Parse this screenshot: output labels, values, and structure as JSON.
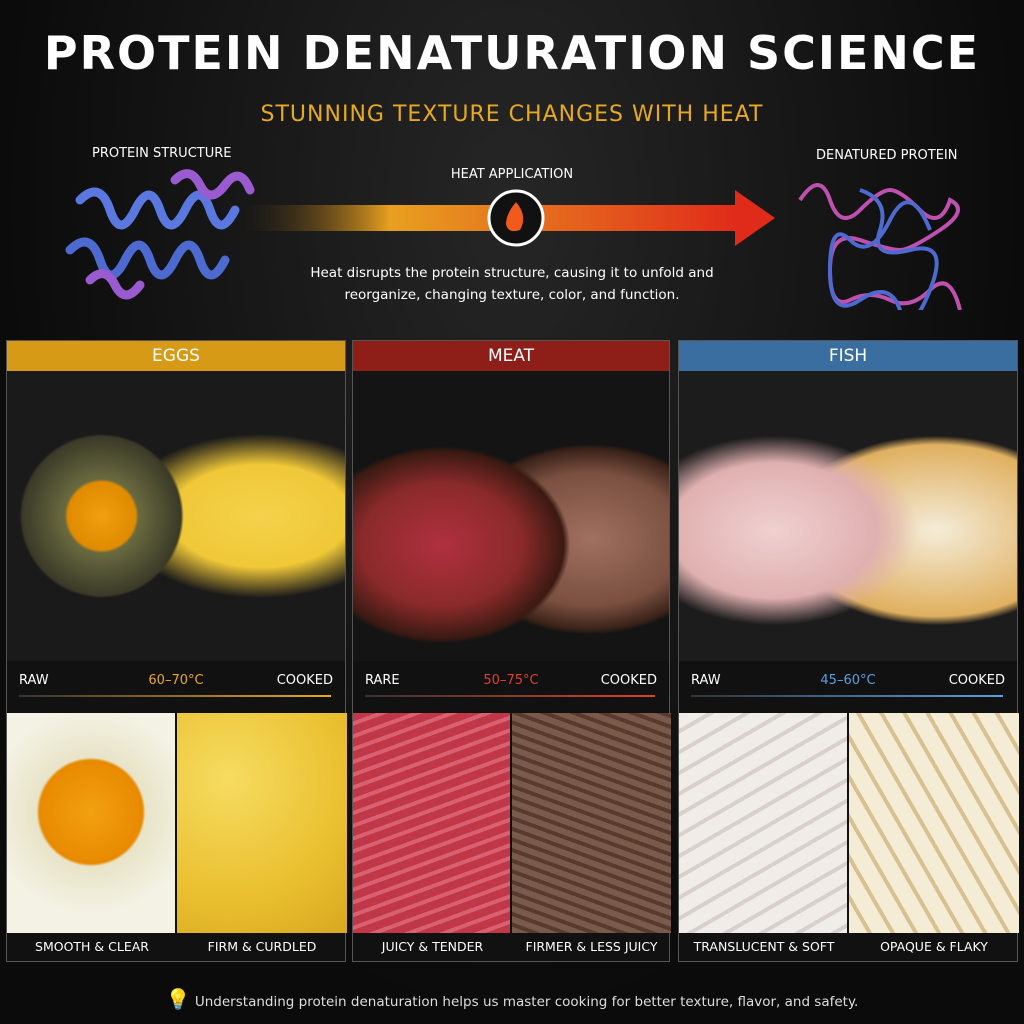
{
  "header": {
    "title": "PROTEIN DENATURATION SCIENCE",
    "subtitle": "STUNNING TEXTURE CHANGES WITH HEAT"
  },
  "diagram": {
    "left_label": "PROTEIN STRUCTURE",
    "arrow_label": "HEAT APPLICATION",
    "right_label": "DENATURED PROTEIN",
    "description": "Heat disrupts the protein structure, causing it to unfold and reorganize, changing texture, color, and function."
  },
  "panels": [
    {
      "title": "EGGS",
      "color": "#d69a16",
      "start": "RAW",
      "range": "60–70°C",
      "end": "COOKED",
      "captions": [
        "SMOOTH & CLEAR",
        "FIRM & CURDLED"
      ]
    },
    {
      "title": "MEAT",
      "color": "#8e1f18",
      "start": "RARE",
      "range": "50–75°C",
      "end": "COOKED",
      "captions": [
        "JUICY & TENDER",
        "FIRMER & LESS JUICY"
      ]
    },
    {
      "title": "FISH",
      "color": "#3a6da0",
      "start": "RAW",
      "range": "45–60°C",
      "end": "COOKED",
      "captions": [
        "TRANSLUCENT & SOFT",
        "OPAQUE & FLAKY"
      ]
    }
  ],
  "footer": {
    "note": "Understanding protein denaturation helps us master cooking for better texture, flavor, and safety."
  }
}
